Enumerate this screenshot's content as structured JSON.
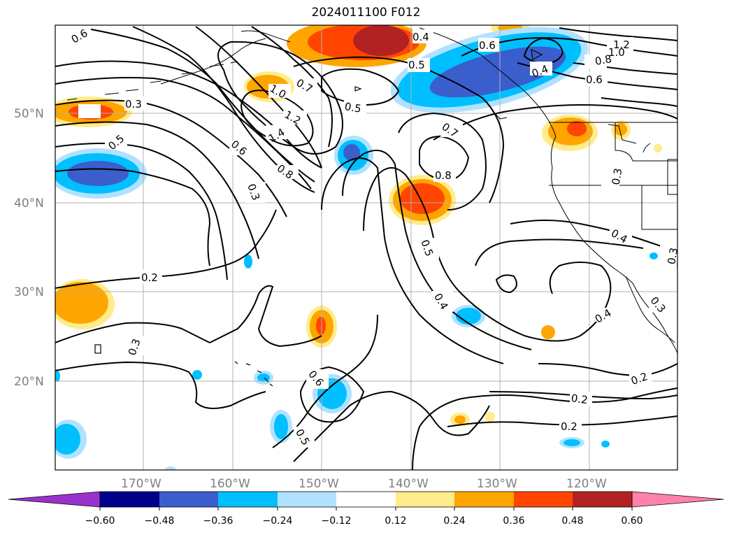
{
  "title": "2024011100 F012",
  "map": {
    "lat_labels": [
      "50°N",
      "40°N",
      "30°N",
      "20°N"
    ],
    "lon_labels": [
      "170°W",
      "160°W",
      "150°W",
      "140°W",
      "130°W",
      "120°W"
    ],
    "contour_labels": [
      "0.6",
      "0.4",
      "0.6",
      "1.2",
      "1.0",
      "0.8",
      "0.5",
      "0.6",
      "0.4",
      "0.3",
      "1.0",
      "0.7",
      "0.5",
      "1.2",
      "1.4",
      "0.5",
      "0.6",
      "0.8",
      "0.7",
      "0.8",
      "0.3",
      "0.3",
      "0.5",
      "0.4",
      "0.2",
      "0.4",
      "0.4",
      "0.3",
      "0.3",
      "0.3",
      "0.6",
      "0.2",
      "0.5",
      "0.2"
    ]
  },
  "colorbar": {
    "tick_labels": [
      "−0.60",
      "−0.48",
      "−0.36",
      "−0.24",
      "−0.12",
      "0.12",
      "0.24",
      "0.36",
      "0.48",
      "0.60"
    ],
    "colors": [
      "#9932CC",
      "#00008B",
      "#3A5FCD",
      "#00BFFF",
      "#B0E2FF",
      "#FFFFFF",
      "#FFEC8B",
      "#FFA500",
      "#FF4500",
      "#B22222",
      "#FF82AB"
    ]
  },
  "colors": {
    "contour": "#000000",
    "coastline": "#000000",
    "grid": "#b0b0b0"
  }
}
